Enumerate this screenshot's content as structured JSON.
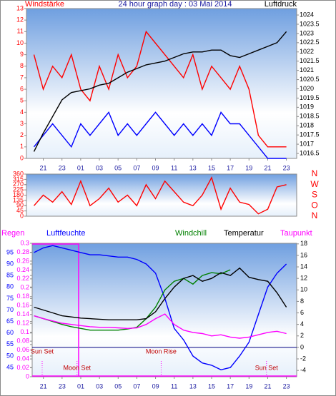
{
  "chart_data": [
    {
      "type": "line",
      "title": "24 hour graph day : 03 Mai 2014",
      "y_label": "Windstärke",
      "y2_label": "Luftdruck",
      "x": [
        20,
        21,
        22,
        23,
        24,
        25,
        26,
        27,
        28,
        29,
        30,
        31,
        32,
        33,
        34,
        35,
        36,
        37,
        38,
        39,
        40,
        41,
        42,
        43,
        44,
        45,
        46,
        47
      ],
      "xlim": [
        19.2,
        48.1
      ],
      "xticks": [
        21,
        23,
        {
          "value": 25,
          "label": "01"
        },
        {
          "value": 27,
          "label": "03"
        },
        {
          "value": 29,
          "label": "05"
        },
        {
          "value": 31,
          "label": "07"
        },
        {
          "value": 33,
          "label": "09"
        },
        {
          "value": 35,
          "label": "11"
        },
        {
          "value": 37,
          "label": "13"
        },
        {
          "value": 39,
          "label": "15"
        },
        {
          "value": 41,
          "label": "17"
        },
        {
          "value": 43,
          "label": "19"
        },
        {
          "value": 45,
          "label": "21"
        },
        {
          "value": 47,
          "label": "23"
        }
      ],
      "ylim": [
        0,
        13
      ],
      "yticks": [
        0,
        1,
        2,
        3,
        4,
        5,
        6,
        7,
        8,
        9,
        10,
        11,
        12,
        13
      ],
      "y2lim": [
        1016.23,
        1024.35
      ],
      "y2ticks": [
        1016.5,
        1017,
        1017.5,
        1018,
        1018.5,
        1019,
        1019.5,
        1020,
        1020.5,
        1021,
        1021.5,
        1022,
        1022.5,
        1023,
        1023.5,
        1024
      ],
      "series": [
        {
          "color": "#ff0000",
          "values": [
            9,
            6,
            8,
            7,
            9,
            6,
            5,
            8,
            6,
            9,
            7,
            8,
            11,
            10,
            9,
            8,
            7,
            9,
            6,
            8,
            7,
            6,
            8,
            6,
            2,
            1,
            1,
            1
          ]
        },
        {
          "color": "#0000ff",
          "values": [
            1,
            2,
            3,
            2,
            1,
            3,
            2,
            3,
            4,
            2,
            3,
            2,
            3,
            4,
            3,
            2,
            3,
            2,
            3,
            2,
            4,
            3,
            3,
            2,
            1,
            0,
            0,
            0
          ]
        },
        {
          "color": "#000000",
          "axis": "y2",
          "values": [
            1016.6,
            1017.6,
            1018.5,
            1019.4,
            1019.8,
            1019.9,
            1020.0,
            1020.2,
            1020.3,
            1020.6,
            1020.9,
            1021.1,
            1021.3,
            1021.4,
            1021.5,
            1021.7,
            1021.9,
            1022.0,
            1022.0,
            1022.1,
            1022.1,
            1021.8,
            1021.7,
            1021.9,
            1022.1,
            1022.3,
            1022.5,
            1023.1
          ]
        }
      ]
    },
    {
      "type": "line",
      "x": [
        20,
        21,
        22,
        23,
        24,
        25,
        26,
        27,
        28,
        29,
        30,
        31,
        32,
        33,
        34,
        35,
        36,
        37,
        38,
        39,
        40,
        41,
        42,
        43,
        44,
        45,
        46,
        47
      ],
      "xlim": [
        19.2,
        48.1
      ],
      "ylim": [
        0,
        360
      ],
      "yticks": [
        0,
        45,
        90,
        135,
        180,
        225,
        270,
        315,
        360
      ],
      "y2lim": [
        0,
        360
      ],
      "y2ticks": [
        {
          "value": 360,
          "label": "N"
        },
        {
          "value": 270,
          "label": "W"
        },
        {
          "value": 180,
          "label": "S"
        },
        {
          "value": 90,
          "label": "O"
        },
        {
          "value": 0,
          "label": "N"
        }
      ],
      "series": [
        {
          "color": "#ff0000",
          "values": [
            90,
            180,
            120,
            210,
            100,
            300,
            90,
            150,
            240,
            120,
            180,
            90,
            270,
            150,
            300,
            210,
            120,
            90,
            180,
            330,
            60,
            240,
            120,
            100,
            20,
            60,
            250,
            270
          ]
        }
      ]
    },
    {
      "type": "line",
      "y_label": "Regen",
      "x": [
        20,
        21,
        22,
        23,
        24,
        25,
        26,
        27,
        28,
        29,
        30,
        31,
        32,
        33,
        34,
        35,
        36,
        37,
        38,
        39,
        40,
        41,
        42,
        43,
        44,
        45,
        46,
        47
      ],
      "xlim": [
        19.8,
        48.1
      ],
      "xticks": [
        21,
        23,
        {
          "value": 25,
          "label": "01"
        },
        {
          "value": 27,
          "label": "03"
        },
        {
          "value": 29,
          "label": "05"
        },
        {
          "value": 31,
          "label": "07"
        },
        {
          "value": 33,
          "label": "09"
        },
        {
          "value": 35,
          "label": "11"
        },
        {
          "value": 37,
          "label": "13"
        },
        {
          "value": 39,
          "label": "15"
        },
        {
          "value": 41,
          "label": "17"
        },
        {
          "value": 43,
          "label": "19"
        },
        {
          "value": 45,
          "label": "21"
        },
        {
          "value": 47,
          "label": "23"
        }
      ],
      "ylim": [
        0,
        0.3
      ],
      "yticks": [
        0,
        0.02,
        0.04,
        0.06,
        0.08,
        0.1,
        0.12,
        0.14,
        0.16,
        0.18,
        0.2,
        0.22,
        0.24,
        0.26,
        0.28,
        0.3
      ],
      "y2lim": [
        41,
        99
      ],
      "y2ticks": [
        45,
        50,
        55,
        60,
        65,
        70,
        75,
        80,
        85,
        90,
        95
      ],
      "y3lim": [
        -5.1,
        18.1
      ],
      "y3ticks": [
        -4,
        -2,
        0,
        2,
        4,
        6,
        8,
        10,
        12,
        14,
        16,
        18
      ],
      "series": [
        {
          "name": "Luftfeuchte",
          "color": "#0000ff",
          "axis": "y2",
          "values": [
            95,
            97,
            98,
            97,
            96,
            95,
            94,
            94,
            93.5,
            93,
            93,
            92,
            90,
            86,
            75,
            62,
            57,
            50,
            47,
            46,
            44,
            45,
            50,
            56,
            68,
            80,
            86,
            90
          ]
        },
        {
          "name": "Windchill",
          "color": "#008000",
          "axis": "y3",
          "values": [
            5.5,
            5,
            4.5,
            4,
            3.6,
            3.3,
            3,
            3,
            3,
            3,
            3.2,
            3.5,
            5,
            7,
            10,
            11.5,
            12,
            11,
            12.5,
            13,
            12.8,
            13.5,
            null,
            null,
            null,
            null,
            null,
            null
          ]
        },
        {
          "name": "Temperatur",
          "color": "#000000",
          "axis": "y3",
          "values": [
            7,
            6.5,
            6,
            5.5,
            5.3,
            5.1,
            5,
            4.9,
            4.8,
            4.8,
            4.8,
            4.8,
            5,
            6.2,
            8.5,
            10.5,
            12,
            12.5,
            11.5,
            12,
            13,
            12.5,
            13.8,
            12.2,
            11.8,
            11.5,
            9.5,
            7
          ]
        },
        {
          "name": "Taupunkt",
          "color": "#ff00ff",
          "axis": "y3",
          "values": [
            5.5,
            5,
            4.6,
            4.2,
            4,
            3.8,
            3.6,
            3.5,
            3.5,
            3.4,
            3.3,
            3.4,
            4,
            5,
            5.8,
            4,
            3,
            2.6,
            2.4,
            2,
            2.2,
            1.8,
            1.6,
            1.8,
            2.2,
            2.6,
            2.8,
            2.4
          ]
        }
      ],
      "annotations": [
        {
          "text": "Sun Set",
          "x": 20.87
        },
        {
          "text": "Moon Set",
          "x": 24.6
        },
        {
          "text": "Moon Rise",
          "x": 33.6
        },
        {
          "text": "Sun Set",
          "x": 44.87
        }
      ]
    }
  ]
}
